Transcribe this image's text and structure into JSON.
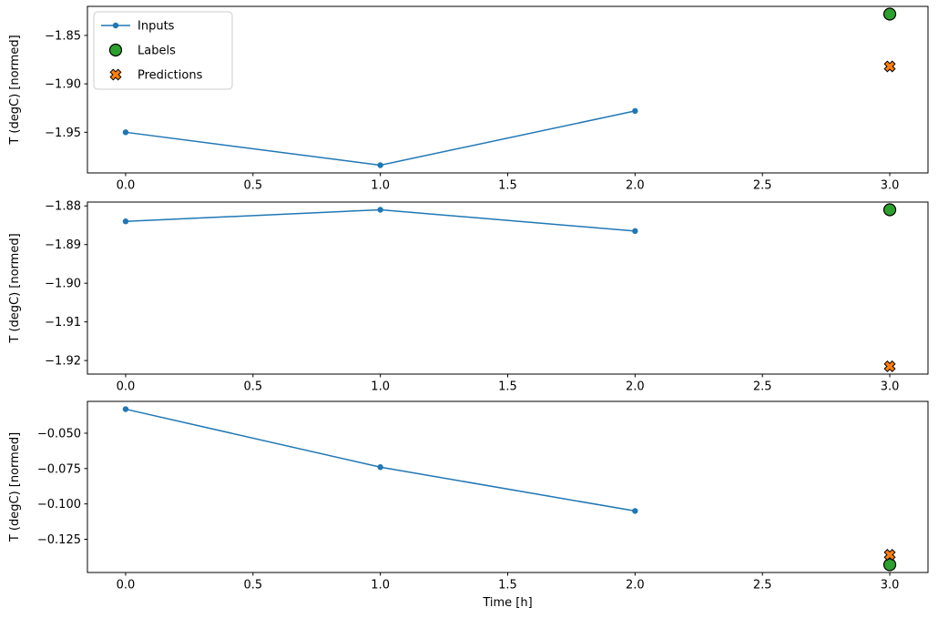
{
  "figure": {
    "background": "#ffffff",
    "xlabel": "Time [h]",
    "ylabel": "T (degC) [normed]"
  },
  "legend": {
    "position": "upper-left",
    "items": [
      {
        "label": "Inputs",
        "marker": "line-dot",
        "color": "#1f77b4",
        "edge": "#1f77b4"
      },
      {
        "label": "Labels",
        "marker": "circle",
        "color": "#2ca02c",
        "edge": "#000000"
      },
      {
        "label": "Predictions",
        "marker": "x",
        "color": "#ff7f0e",
        "edge": "#000000"
      }
    ]
  },
  "chart_data": [
    {
      "type": "line",
      "title": "",
      "xlabel": "",
      "ylabel": "T (degC) [normed]",
      "xlim": [
        -0.15,
        3.15
      ],
      "ylim": [
        -1.992,
        -1.82
      ],
      "xticks": [
        0.0,
        0.5,
        1.0,
        1.5,
        2.0,
        2.5,
        3.0
      ],
      "xtick_decimals": 1,
      "yticks": [
        -1.85,
        -1.9,
        -1.95
      ],
      "ytick_decimals": 2,
      "grid": false,
      "series": [
        {
          "name": "Inputs",
          "type": "line",
          "marker": "dot",
          "color": "#1f77b4",
          "edge": "#1f77b4",
          "x": [
            0,
            1,
            2
          ],
          "y": [
            -1.95,
            -1.984,
            -1.928
          ]
        },
        {
          "name": "Labels",
          "type": "scatter",
          "marker": "circle",
          "color": "#2ca02c",
          "edge": "#000000",
          "x": [
            3
          ],
          "y": [
            -1.828
          ]
        },
        {
          "name": "Predictions",
          "type": "scatter",
          "marker": "x",
          "color": "#ff7f0e",
          "edge": "#000000",
          "x": [
            3
          ],
          "y": [
            -1.882
          ]
        }
      ]
    },
    {
      "type": "line",
      "title": "",
      "xlabel": "",
      "ylabel": "T (degC) [normed]",
      "xlim": [
        -0.15,
        3.15
      ],
      "ylim": [
        -1.9235,
        -1.879
      ],
      "xticks": [
        0.0,
        0.5,
        1.0,
        1.5,
        2.0,
        2.5,
        3.0
      ],
      "xtick_decimals": 1,
      "yticks": [
        -1.88,
        -1.89,
        -1.9,
        -1.91,
        -1.92
      ],
      "ytick_decimals": 2,
      "grid": false,
      "series": [
        {
          "name": "Inputs",
          "type": "line",
          "marker": "dot",
          "color": "#1f77b4",
          "edge": "#1f77b4",
          "x": [
            0,
            1,
            2
          ],
          "y": [
            -1.884,
            -1.881,
            -1.8865
          ]
        },
        {
          "name": "Labels",
          "type": "scatter",
          "marker": "circle",
          "color": "#2ca02c",
          "edge": "#000000",
          "x": [
            3
          ],
          "y": [
            -1.881
          ]
        },
        {
          "name": "Predictions",
          "type": "scatter",
          "marker": "x",
          "color": "#ff7f0e",
          "edge": "#000000",
          "x": [
            3
          ],
          "y": [
            -1.9215
          ]
        }
      ]
    },
    {
      "type": "line",
      "title": "",
      "xlabel": "Time [h]",
      "ylabel": "T (degC) [normed]",
      "xlim": [
        -0.15,
        3.15
      ],
      "ylim": [
        -0.1485,
        -0.0275
      ],
      "xticks": [
        0.0,
        0.5,
        1.0,
        1.5,
        2.0,
        2.5,
        3.0
      ],
      "xtick_decimals": 1,
      "yticks": [
        -0.05,
        -0.075,
        -0.1,
        -0.125
      ],
      "ytick_decimals": 3,
      "grid": false,
      "series": [
        {
          "name": "Inputs",
          "type": "line",
          "marker": "dot",
          "color": "#1f77b4",
          "edge": "#1f77b4",
          "x": [
            0,
            1,
            2
          ],
          "y": [
            -0.033,
            -0.074,
            -0.105
          ]
        },
        {
          "name": "Labels",
          "type": "scatter",
          "marker": "circle",
          "color": "#2ca02c",
          "edge": "#000000",
          "x": [
            3
          ],
          "y": [
            -0.143
          ]
        },
        {
          "name": "Predictions",
          "type": "scatter",
          "marker": "x",
          "color": "#ff7f0e",
          "edge": "#000000",
          "x": [
            3
          ],
          "y": [
            -0.136
          ]
        }
      ]
    }
  ]
}
